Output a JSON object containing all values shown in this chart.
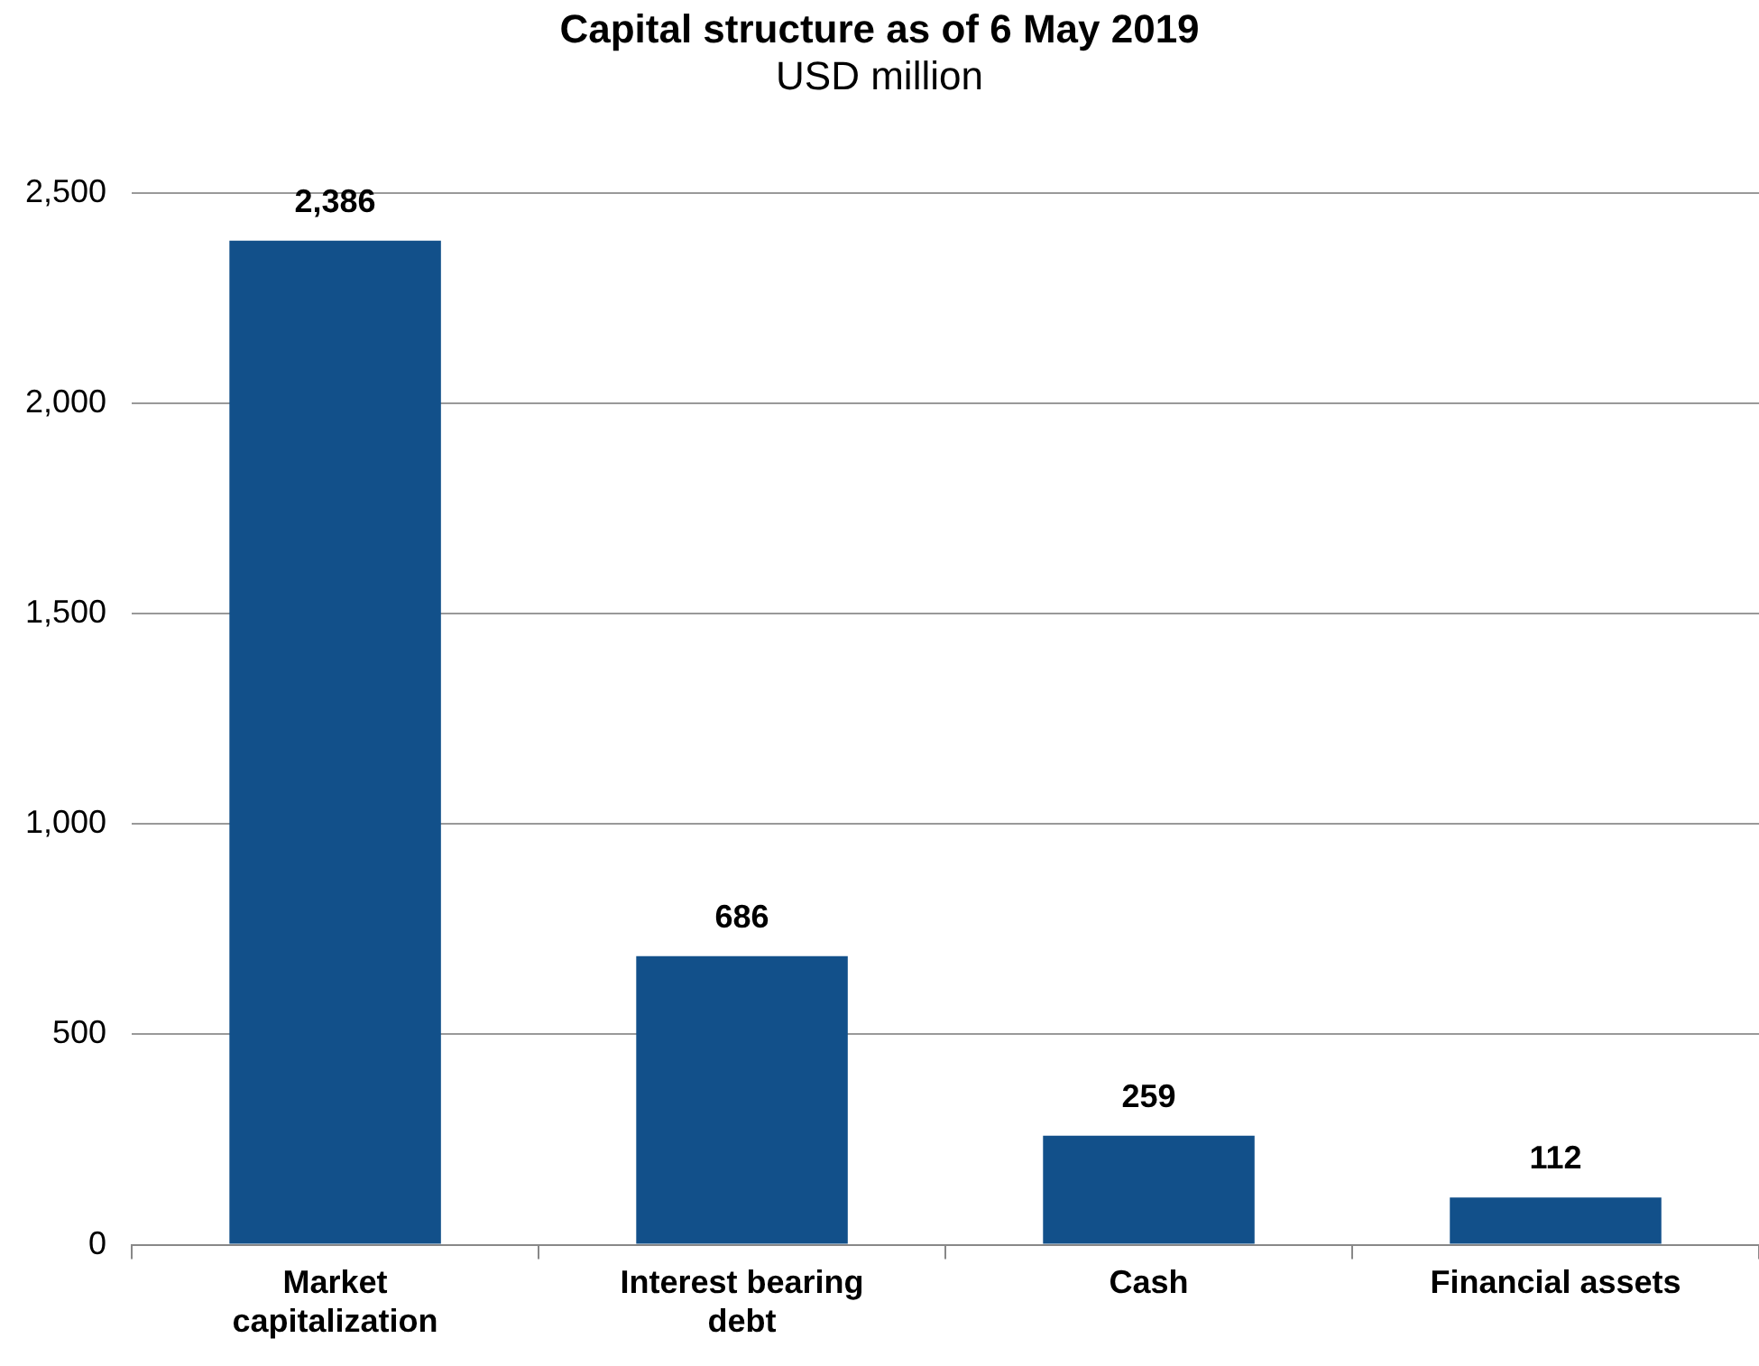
{
  "chart_data": {
    "type": "bar",
    "title": "Capital structure as of 6 May 2019",
    "subtitle": "USD million",
    "categories": [
      "Market capitalization",
      "Interest bearing debt",
      "Cash",
      "Financial assets"
    ],
    "values": [
      2386,
      686,
      259,
      112
    ],
    "value_labels": [
      "2,386",
      "686",
      "259",
      "112"
    ],
    "color": "#12508a",
    "ylim": [
      0,
      2500
    ],
    "yticks": [
      0,
      500,
      {
        "value": 1000,
        "label": "1,000"
      },
      {
        "value": 1500,
        "label": "1,500"
      },
      {
        "value": 2000,
        "label": "2,000"
      },
      {
        "value": 2500,
        "label": "2,500"
      }
    ],
    "grid": "y",
    "legend": false
  }
}
